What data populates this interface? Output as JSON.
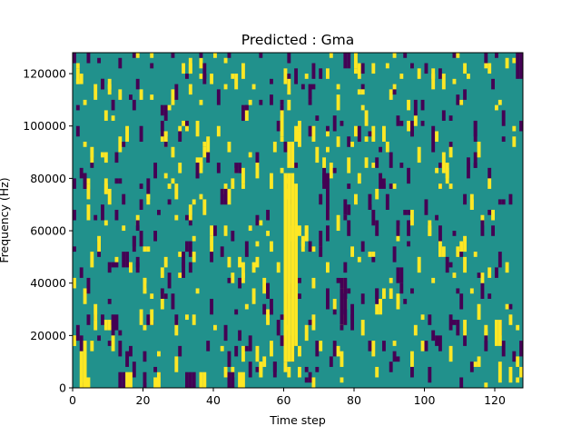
{
  "chart_data": {
    "type": "heatmap",
    "title": "Predicted : Gma",
    "xlabel": "Time step",
    "ylabel": "Frequency (Hz)",
    "xlim": [
      0,
      128
    ],
    "ylim": [
      0,
      128000
    ],
    "x_ticks": [
      0,
      20,
      40,
      60,
      80,
      100,
      120
    ],
    "y_ticks": [
      0,
      20000,
      40000,
      60000,
      80000,
      100000,
      120000
    ],
    "x_tick_labels": [
      "0",
      "20",
      "40",
      "60",
      "80",
      "100",
      "120"
    ],
    "y_tick_labels": [
      "0",
      "20000",
      "40000",
      "60000",
      "80000",
      "100000",
      "120000"
    ],
    "n_time_steps": 128,
    "n_frequency_bins": 64,
    "bin_width_hz": 2000,
    "colormap": [
      "#440154",
      "#21918c",
      "#fde725"
    ],
    "background_value": 1,
    "legend": "none",
    "grid": false,
    "cells": [
      {
        "t": 2,
        "f": [
          0,
          6
        ],
        "v": 2
      },
      {
        "t": 3,
        "f": [
          0,
          8
        ],
        "v": 2
      },
      {
        "t": 4,
        "f": [
          0,
          1
        ],
        "v": 2
      },
      {
        "t": 13,
        "f": [
          0,
          2
        ],
        "v": 0
      },
      {
        "t": 14,
        "f": [
          0,
          2
        ],
        "v": 0
      },
      {
        "t": 15,
        "f": [
          0,
          2
        ],
        "v": 2
      },
      {
        "t": 16,
        "f": [
          0,
          2
        ],
        "v": 2
      },
      {
        "t": 20,
        "f": [
          0,
          2
        ],
        "v": 0
      },
      {
        "t": 24,
        "f": [
          0,
          2
        ],
        "v": 2
      },
      {
        "t": 32,
        "f": [
          0,
          2
        ],
        "v": 0
      },
      {
        "t": 33,
        "f": [
          0,
          2
        ],
        "v": 0
      },
      {
        "t": 34,
        "f": [
          0,
          2
        ],
        "v": 0
      },
      {
        "t": 36,
        "f": [
          0,
          2
        ],
        "v": 2
      },
      {
        "t": 37,
        "f": [
          0,
          2
        ],
        "v": 2
      },
      {
        "t": 44,
        "f": [
          0,
          2
        ],
        "v": 0
      },
      {
        "t": 45,
        "f": [
          0,
          2
        ],
        "v": 0
      },
      {
        "t": 47,
        "f": [
          0,
          2
        ],
        "v": 2
      },
      {
        "t": 48,
        "f": [
          0,
          2
        ],
        "v": 2
      },
      {
        "t": 60,
        "f": [
          5,
          40
        ],
        "v": 2
      },
      {
        "t": 61,
        "f": [
          5,
          40
        ],
        "v": 2
      },
      {
        "t": 62,
        "f": [
          5,
          40
        ],
        "v": 2
      },
      {
        "t": 63,
        "f": [
          8,
          38
        ],
        "v": 2
      },
      {
        "t": 61,
        "f": [
          42,
          46
        ],
        "v": 2
      },
      {
        "t": 62,
        "f": [
          42,
          46
        ],
        "v": 2
      },
      {
        "t": 59,
        "f": [
          48,
          52
        ],
        "v": 2
      },
      {
        "t": 72,
        "f": [
          32,
          40
        ],
        "v": 0
      },
      {
        "t": 76,
        "f": [
          12,
          18
        ],
        "v": 0
      },
      {
        "t": 77,
        "f": [
          12,
          18
        ],
        "v": 0
      },
      {
        "t": 72,
        "f": [
          15,
          18
        ],
        "v": 0
      },
      {
        "t": 120,
        "f": [
          8,
          12
        ],
        "v": 2
      },
      {
        "t": 121,
        "f": [
          8,
          12
        ],
        "v": 2
      },
      {
        "t": 121,
        "f": [
          1,
          4
        ],
        "v": 2
      },
      {
        "t": 126,
        "f": [
          59,
          63
        ],
        "v": 0
      },
      {
        "t": 127,
        "f": [
          59,
          63
        ],
        "v": 0
      }
    ]
  }
}
